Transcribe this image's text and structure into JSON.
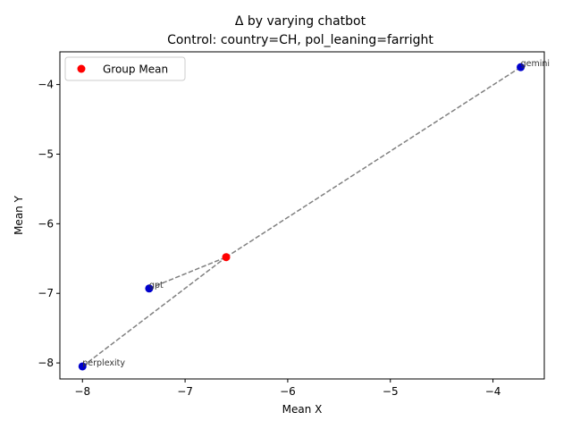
{
  "chart_data": {
    "type": "scatter",
    "title": "Δ by varying chatbot",
    "subtitle": "Control: country=CH, pol_leaning=farright",
    "xlabel": "Mean X",
    "ylabel": "Mean Y",
    "xlim": [
      -8.22,
      -3.5
    ],
    "ylim": [
      -8.23,
      -3.53
    ],
    "xticks": [
      -8,
      -7,
      -6,
      -5,
      -4
    ],
    "yticks": [
      -8,
      -7,
      -6,
      -5,
      -4
    ],
    "tick_labels_x": [
      "−8",
      "−7",
      "−6",
      "−5",
      "−4"
    ],
    "tick_labels_y": [
      "−8",
      "−7",
      "−6",
      "−5",
      "−4"
    ],
    "grid": false,
    "legend": {
      "position": "top-left",
      "entries": [
        "Group Mean"
      ]
    },
    "colors": {
      "points": "#0000cc",
      "group_mean": "#ff0000",
      "lines": "#808080"
    },
    "points": [
      {
        "label": "gemini",
        "x": -3.73,
        "y": -3.75
      },
      {
        "label": "gpt",
        "x": -7.35,
        "y": -6.93
      },
      {
        "label": "perplexity",
        "x": -8.0,
        "y": -8.05
      }
    ],
    "group_mean": {
      "name": "Group Mean",
      "x": -6.6,
      "y": -6.48
    }
  }
}
